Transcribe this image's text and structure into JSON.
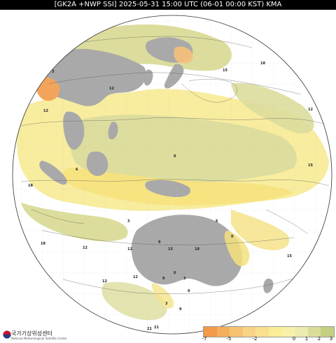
{
  "header": {
    "title": "[GK2A +NWP SSI] 2025-05-31 15:00 UTC (06-01 00:00 KST) KMA"
  },
  "logo": {
    "name": "국가기상위성센터",
    "subtitle": "National Meteorological Satellite Center"
  },
  "colorbar": {
    "colors": [
      "#f29a4a",
      "#f4ae5e",
      "#f6c272",
      "#f8d486",
      "#f9e08f",
      "#fbec98",
      "#f7f0a8",
      "#ecebb0",
      "#dadd9a",
      "#c5cf80"
    ],
    "tick_labels": [
      "-7",
      "-5",
      "-2",
      "0",
      "1",
      "2",
      "3"
    ]
  },
  "map": {
    "land_color": "#a9a9a9",
    "ocean_color": "#ffffff",
    "contour_labels": [
      "12",
      "18",
      "6",
      "0",
      "3",
      "12",
      "15",
      "18",
      "12",
      "15",
      "12",
      "3",
      "6",
      "0",
      "9",
      "12",
      "15",
      "18",
      "21",
      "15",
      "9",
      "3",
      "0",
      "3",
      "6",
      "9",
      "12",
      "15",
      "12",
      "18",
      "21"
    ]
  }
}
